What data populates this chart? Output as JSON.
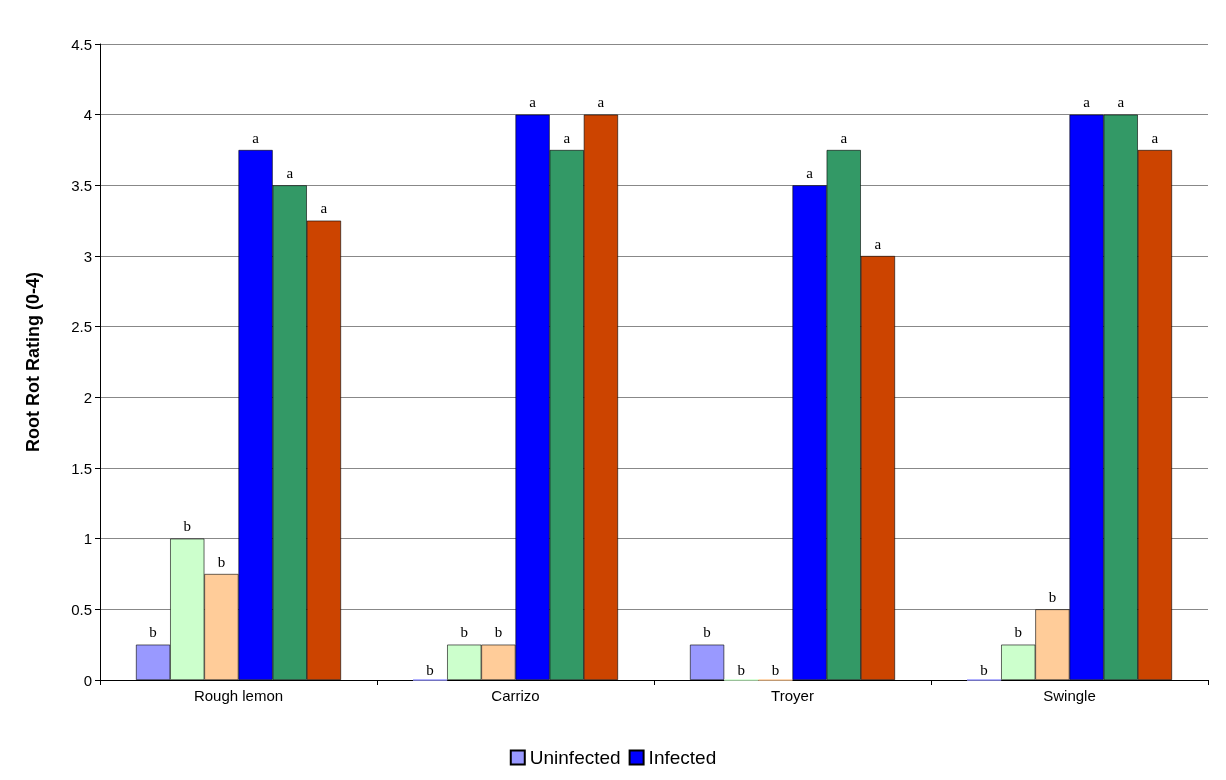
{
  "chart_data": {
    "type": "bar",
    "ylabel": "Root Rot Rating (0-4)",
    "categories": [
      "Rough lemon",
      "Carrizo",
      "Troyer",
      "Swingle"
    ],
    "series": [
      {
        "name": "Uninfected",
        "color": "#9999ff",
        "values": [
          0.25,
          0,
          0.25,
          0
        ],
        "value_labels": [
          "b",
          "b",
          "b",
          "b"
        ]
      },
      {
        "color": "#ccffcc",
        "values": [
          1,
          0.25,
          0,
          0.25
        ],
        "value_labels": [
          "b",
          "b",
          "b",
          "b"
        ]
      },
      {
        "color": "#ffcc99",
        "values": [
          0.75,
          0.25,
          0,
          0.5
        ],
        "value_labels": [
          "b",
          "b",
          "b",
          "b"
        ]
      },
      {
        "name": "Infected",
        "color": "#0000ff",
        "values": [
          3.75,
          4,
          3.5,
          4
        ],
        "value_labels": [
          "a",
          "a",
          "a",
          "a"
        ]
      },
      {
        "color": "#339966",
        "values": [
          3.5,
          3.75,
          3.75,
          4
        ],
        "value_labels": [
          "a",
          "a",
          "a",
          "a"
        ]
      },
      {
        "color": "#cc4400",
        "values": [
          3.25,
          4,
          3,
          3.75
        ],
        "value_labels": [
          "a",
          "a",
          "a",
          "a"
        ]
      }
    ],
    "ylim": [
      0,
      4.5
    ],
    "yticks": [
      0,
      0.5,
      1,
      1.5,
      2,
      2.5,
      3,
      3.5,
      4,
      4.5
    ],
    "grid": "y",
    "legend": "bottom"
  }
}
